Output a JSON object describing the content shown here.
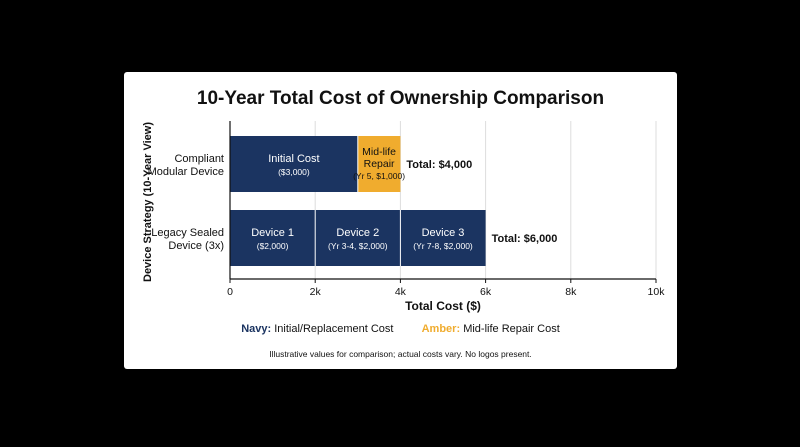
{
  "chart_data": {
    "type": "bar",
    "orientation": "horizontal",
    "stacked": true,
    "title": "10-Year Total Cost of Ownership Comparison",
    "xlabel": "Total Cost ($)",
    "ylabel": "Device Strategy (10-Year View)",
    "xlim": [
      0,
      10000
    ],
    "xticks": [
      0,
      2000,
      4000,
      6000,
      8000,
      10000
    ],
    "xtick_labels": [
      "0",
      "2k",
      "4k",
      "6k",
      "8k",
      "10k"
    ],
    "grid": "vertical",
    "categories": [
      {
        "label_lines": [
          "Compliant",
          "Modular Device"
        ],
        "total_label": "Total: $4,000",
        "total": 4000
      },
      {
        "label_lines": [
          "Legacy Sealed",
          "Device (3x)"
        ],
        "total_label": "Total: $6,000",
        "total": 6000
      }
    ],
    "segments": [
      [
        {
          "line1": "Initial Cost",
          "line2": "($3,000)",
          "value": 3000,
          "color_key": "navy"
        },
        {
          "line1": "Mid-life",
          "line2": "Repair",
          "line3": "(Yr 5, $1,000)",
          "value": 1000,
          "color_key": "amber"
        }
      ],
      [
        {
          "line1": "Device 1",
          "line2": "($2,000)",
          "value": 2000,
          "color_key": "navy"
        },
        {
          "line1": "Device 2",
          "line2": "(Yr 3-4, $2,000)",
          "value": 2000,
          "color_key": "navy"
        },
        {
          "line1": "Device 3",
          "line2": "(Yr 7-8, $2,000)",
          "value": 2000,
          "color_key": "navy"
        }
      ]
    ],
    "legend": {
      "position": "bottom",
      "items": [
        {
          "key": "Navy:",
          "text": "Initial/Replacement Cost",
          "color_key": "navy"
        },
        {
          "key": "Amber:",
          "text": "Mid-life Repair Cost",
          "color_key": "amber"
        }
      ]
    },
    "footnote": "Illustrative values for comparison; actual costs vary. No logos present."
  },
  "colors": {
    "navy": "#1b3461",
    "amber": "#f0ac2e",
    "grid": "#dddddd",
    "axis": "#111111",
    "background": "#ffffff",
    "page": "#000000"
  }
}
